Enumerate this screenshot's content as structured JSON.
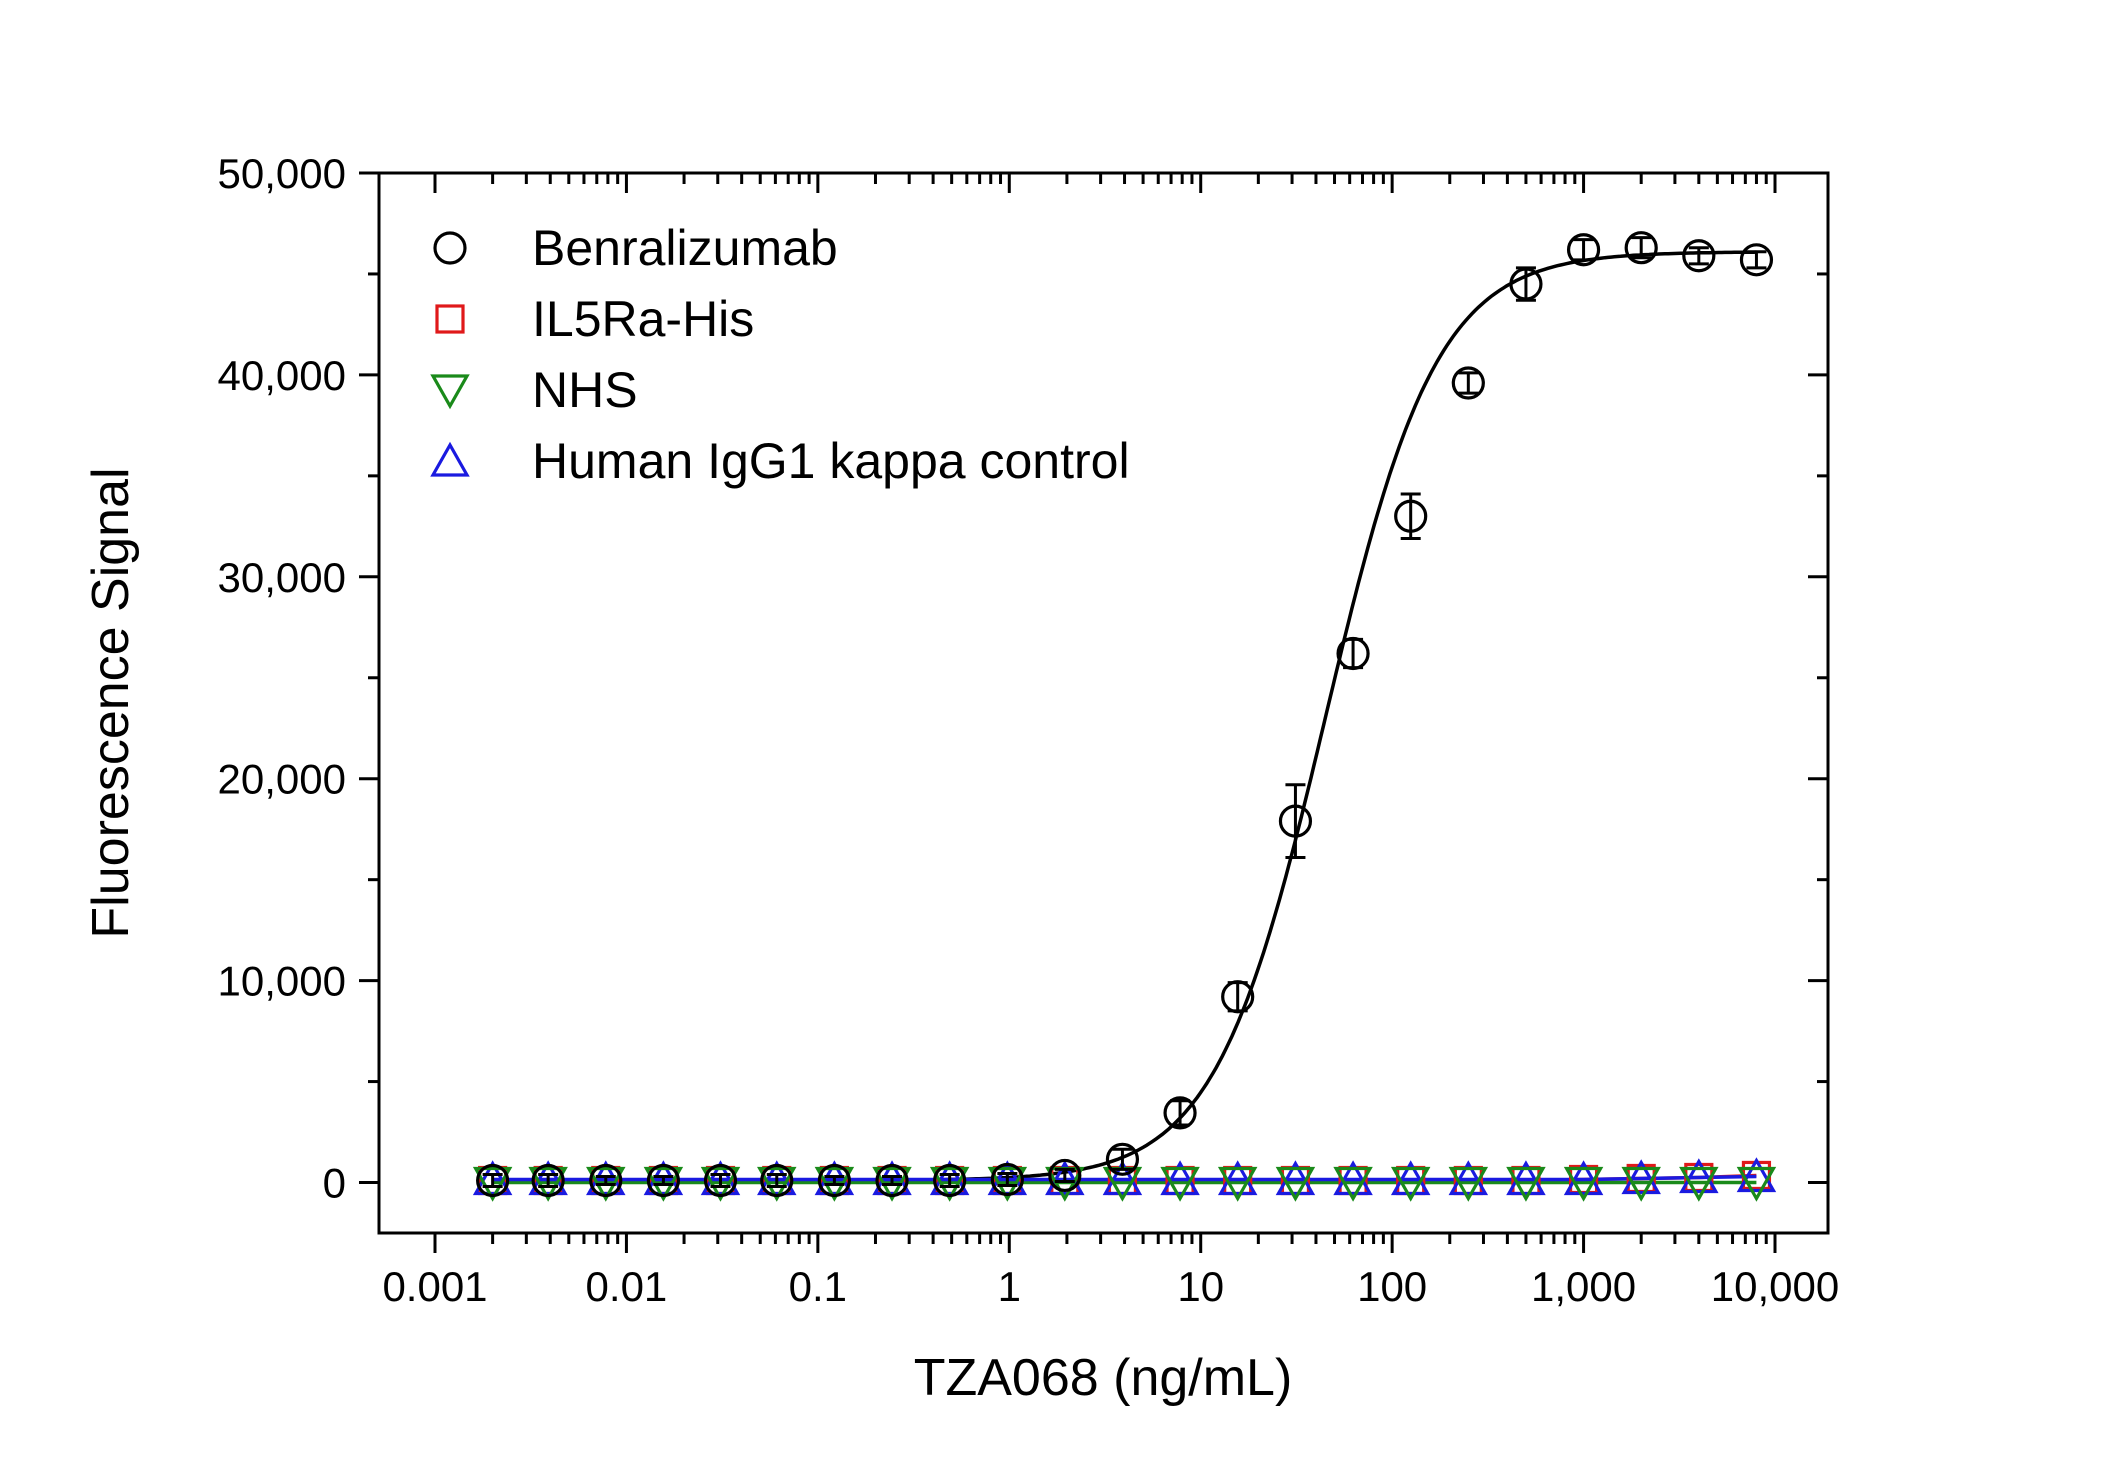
{
  "chart_data": {
    "type": "scatter",
    "title": "",
    "xlabel": "TZA068 (ng/mL)",
    "ylabel": "Fluorescence Signal",
    "x_scale": "log",
    "xlim": [
      0.001,
      10000
    ],
    "ylim": [
      -2500,
      50000
    ],
    "x_ticks": [
      0.001,
      0.01,
      0.1,
      1,
      10,
      100,
      1000,
      10000
    ],
    "x_tick_labels": [
      "0.001",
      "0.01",
      "0.1",
      "1",
      "10",
      "100",
      "1,000",
      "10,000"
    ],
    "y_ticks": [
      0,
      10000,
      20000,
      30000,
      40000,
      50000
    ],
    "y_tick_labels": [
      "0",
      "10,000",
      "20,000",
      "30,000",
      "40,000",
      "50,000"
    ],
    "grid": false,
    "legend_position": "top-left",
    "x": [
      0.002,
      0.0039,
      0.0078,
      0.0156,
      0.031,
      0.061,
      0.122,
      0.244,
      0.488,
      0.977,
      1.95,
      3.9,
      7.8,
      15.6,
      31.25,
      62.5,
      125,
      250,
      500,
      1000,
      2000,
      4000,
      8000
    ],
    "series": [
      {
        "name": "Benralizumab",
        "marker": "circle",
        "color": "#000000",
        "values": [
          100,
          100,
          100,
          100,
          100,
          100,
          100,
          100,
          100,
          150,
          350,
          1150,
          3450,
          9200,
          17900,
          26200,
          33000,
          39600,
          44500,
          46200,
          46300,
          45900,
          45700
        ],
        "errors": [
          300,
          300,
          200,
          200,
          300,
          300,
          200,
          200,
          300,
          300,
          300,
          500,
          600,
          700,
          1800,
          700,
          1100,
          500,
          800,
          500,
          500,
          400,
          400
        ],
        "fit": {
          "bottom": 100,
          "top": 46100,
          "ec50": 45,
          "hill": 1.5
        }
      },
      {
        "name": "IL5Ra-His",
        "marker": "square",
        "color": "#e0191a",
        "values": [
          100,
          100,
          100,
          100,
          100,
          100,
          100,
          100,
          100,
          100,
          100,
          100,
          100,
          100,
          100,
          100,
          100,
          100,
          100,
          150,
          200,
          250,
          350
        ]
      },
      {
        "name": "NHS",
        "marker": "triangle-down",
        "color": "#1a8a1a",
        "values": [
          0,
          0,
          0,
          0,
          0,
          0,
          0,
          0,
          0,
          0,
          0,
          0,
          0,
          0,
          0,
          0,
          0,
          0,
          0,
          0,
          0,
          0,
          0
        ]
      },
      {
        "name": "Human IgG1 kappa control",
        "marker": "triangle-up",
        "color": "#1a1ae0",
        "values": [
          150,
          150,
          150,
          150,
          150,
          150,
          150,
          150,
          150,
          150,
          150,
          150,
          150,
          150,
          150,
          150,
          150,
          150,
          150,
          150,
          200,
          250,
          300
        ]
      }
    ]
  }
}
